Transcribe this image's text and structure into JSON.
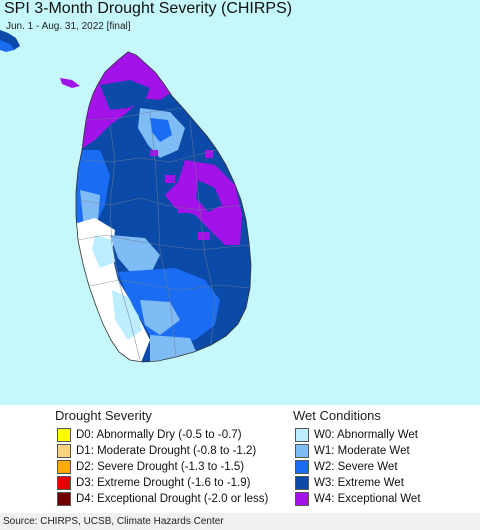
{
  "title": "SPI 3-Month Drought Severity (CHIRPS)",
  "subtitle": "Jun. 1 - Aug. 31, 2022 [final]",
  "colors": {
    "ocean": "#c6f7fb",
    "no_anomaly": "#ffffff",
    "W0": "#bdeeff",
    "W1": "#7fbbf5",
    "W2": "#1a6cf2",
    "W3": "#0b4aa8",
    "W4": "#a312e8"
  },
  "legend": {
    "drought_heading": "Drought Severity",
    "wet_heading": "Wet Conditions",
    "drought_items": [
      {
        "code": "D0",
        "label": "D0: Abnormally Dry (-0.5 to -0.7)",
        "color": "#ffff00"
      },
      {
        "code": "D1",
        "label": "D1: Moderate Drought (-0.8 to -1.2)",
        "color": "#fcd37f"
      },
      {
        "code": "D2",
        "label": "D2: Severe Drought (-1.3 to -1.5)",
        "color": "#ffaa00"
      },
      {
        "code": "D3",
        "label": "D3: Extreme Drought (-1.6 to -1.9)",
        "color": "#e60000"
      },
      {
        "code": "D4",
        "label": "D4: Exceptional Drought (-2.0 or less)",
        "color": "#730000"
      }
    ],
    "wet_items": [
      {
        "code": "W0",
        "label": "W0: Abnormally Wet",
        "color": "#bdeeff"
      },
      {
        "code": "W1",
        "label": "W1: Moderate Wet",
        "color": "#7fbbf5"
      },
      {
        "code": "W2",
        "label": "W2: Severe Wet",
        "color": "#1a6cf2"
      },
      {
        "code": "W3",
        "label": "W3: Extreme Wet",
        "color": "#0b4aa8"
      },
      {
        "code": "W4",
        "label": "W4: Exceptional Wet",
        "color": "#a312e8"
      }
    ]
  },
  "source": "Source: CHIRPS, UCSB, Climate Hazards Center"
}
